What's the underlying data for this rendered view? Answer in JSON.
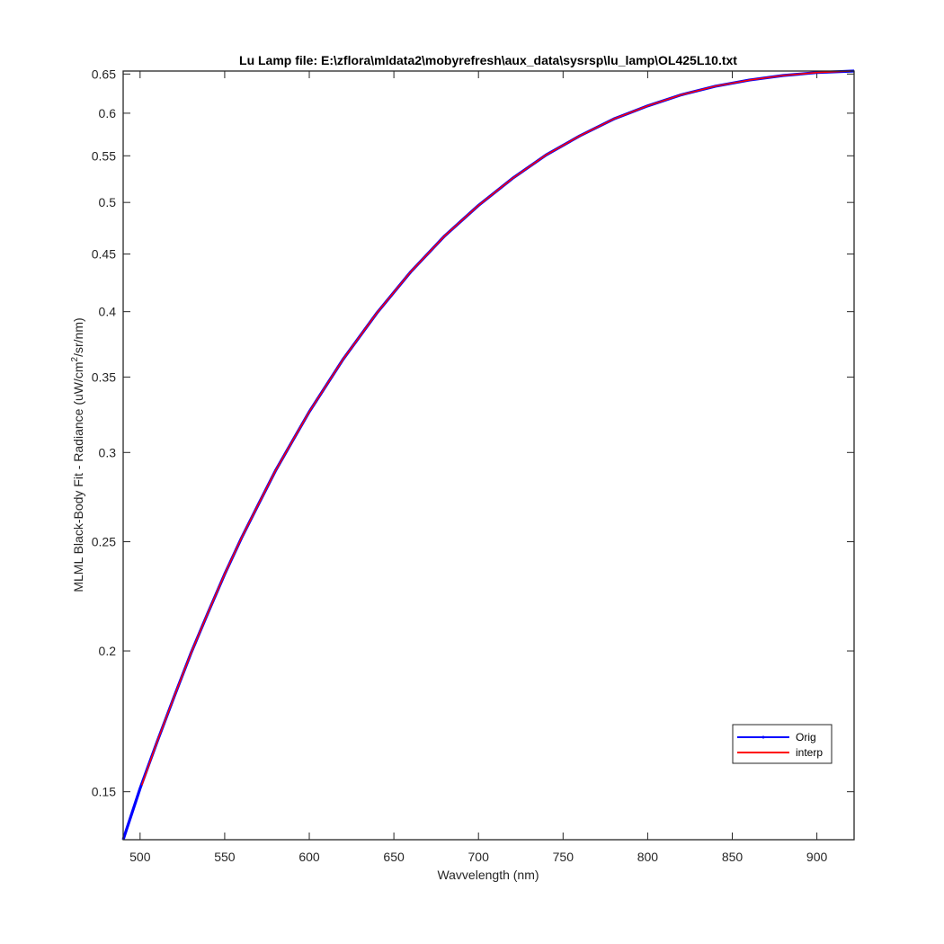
{
  "chart_data": {
    "type": "line",
    "title": "Lu Lamp file: E:\\zflora\\mldata2\\mobyrefresh\\aux_data\\sysrsp\\lu_lamp\\OL425L10.txt",
    "xlabel": "Wavvelength (nm)",
    "ylabel_main": "MLML Black-Body Fit - Radiance (uW/cm",
    "ylabel_sup": "2",
    "ylabel_tail": "/sr/nm)",
    "xlim": [
      490,
      922
    ],
    "ylim": [
      0.136,
      0.654
    ],
    "yscale": "log",
    "grid": false,
    "legend_position": "lower-right",
    "x_ticks": [
      500,
      550,
      600,
      650,
      700,
      750,
      800,
      850,
      900
    ],
    "x_tick_labels": [
      "500",
      "550",
      "600",
      "650",
      "700",
      "750",
      "800",
      "850",
      "900"
    ],
    "y_ticks": [
      0.15,
      0.2,
      0.25,
      0.3,
      0.35,
      0.4,
      0.45,
      0.5,
      0.55,
      0.6,
      0.65
    ],
    "y_tick_labels": [
      "0.15",
      "0.2",
      "0.25",
      "0.3",
      "0.35",
      "0.4",
      "0.45",
      "0.5",
      "0.55",
      "0.6",
      "0.65"
    ],
    "series": [
      {
        "name": "Orig",
        "color": "#0000ff",
        "x": [
          490,
          500,
          510,
          520,
          530,
          540,
          550,
          560,
          570,
          580,
          590,
          600,
          620,
          640,
          660,
          680,
          700,
          720,
          740,
          760,
          780,
          800,
          820,
          840,
          860,
          880,
          900,
          922
        ],
        "y": [
          0.136,
          0.151,
          0.166,
          0.182,
          0.199,
          0.216,
          0.234,
          0.252,
          0.27,
          0.289,
          0.307,
          0.326,
          0.363,
          0.399,
          0.434,
          0.467,
          0.497,
          0.525,
          0.551,
          0.573,
          0.593,
          0.609,
          0.623,
          0.634,
          0.642,
          0.648,
          0.652,
          0.654
        ]
      },
      {
        "name": "interp",
        "color": "#ff0000",
        "x": [
          501,
          510,
          520,
          530,
          540,
          550,
          560,
          570,
          580,
          590,
          600,
          620,
          640,
          660,
          680,
          700,
          720,
          740,
          760,
          780,
          800,
          820,
          840,
          860,
          880,
          900,
          920
        ],
        "y": [
          0.152,
          0.166,
          0.182,
          0.199,
          0.216,
          0.234,
          0.252,
          0.27,
          0.289,
          0.307,
          0.326,
          0.363,
          0.399,
          0.434,
          0.467,
          0.497,
          0.525,
          0.551,
          0.573,
          0.593,
          0.609,
          0.623,
          0.634,
          0.642,
          0.648,
          0.652,
          0.654
        ]
      }
    ]
  }
}
